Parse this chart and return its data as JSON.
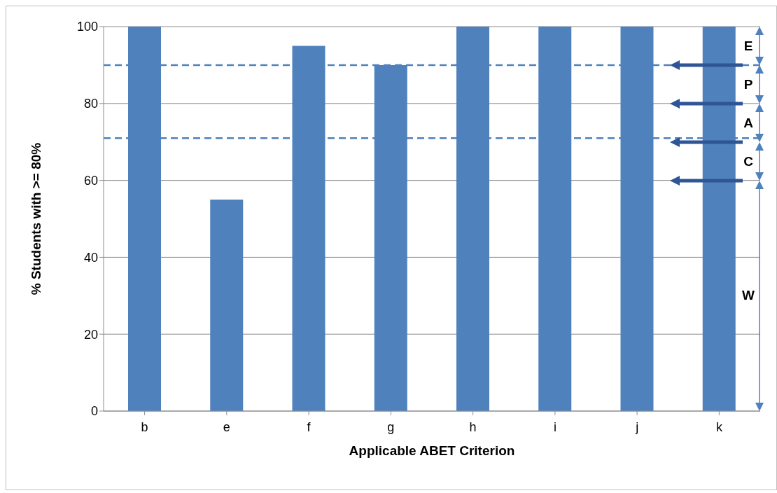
{
  "chart_data": {
    "type": "bar",
    "xlabel": "Applicable ABET Criterion",
    "ylabel": "% Students with >= 80%",
    "categories": [
      "b",
      "e",
      "f",
      "g",
      "h",
      "i",
      "j",
      "k"
    ],
    "values": [
      100,
      55,
      95,
      90,
      100,
      100,
      100,
      100
    ],
    "color": "#4f81bd",
    "ylim": [
      0,
      100
    ],
    "yticks": [
      0,
      20,
      40,
      60,
      80,
      100
    ],
    "grid": "y",
    "ref_lines": [
      {
        "axis": "y",
        "value": 90,
        "color": "#4f81bd",
        "line_style": "dashed"
      },
      {
        "axis": "y",
        "value": 71,
        "color": "#4f81bd",
        "line_style": "dashed"
      }
    ],
    "annotations": [
      "E",
      "P",
      "A",
      "C",
      "W"
    ]
  }
}
